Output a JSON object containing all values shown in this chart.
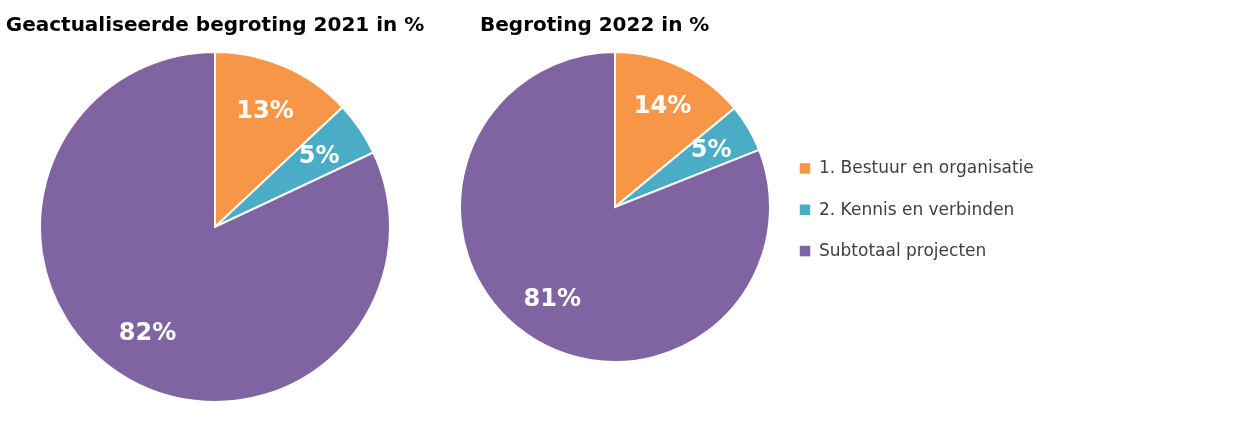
{
  "chart_data": [
    {
      "type": "pie",
      "title": "Geactualiseerde begroting 2021 in %",
      "categories": [
        null,
        null,
        null
      ],
      "values": [
        13,
        5,
        82
      ],
      "colors": [
        "#f79646",
        "#4bacc6",
        "#8064a2"
      ],
      "value_labels": [
        "13%",
        "5%",
        "82%"
      ],
      "legend": false
    },
    {
      "type": "pie",
      "title": "Begroting 2022 in %",
      "categories": [
        "1. Bestuur en organisatie",
        "2. Kennis en verbinden",
        "Subtotaal projecten"
      ],
      "values": [
        14,
        5,
        81
      ],
      "colors": [
        "#f79646",
        "#4bacc6",
        "#8064a2"
      ],
      "value_labels": [
        "14%",
        "5%",
        "81%"
      ],
      "legend": "right"
    }
  ]
}
